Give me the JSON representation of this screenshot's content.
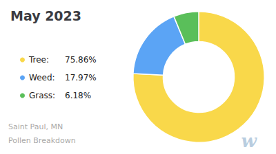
{
  "chart_data": {
    "type": "donut",
    "title": "May 2023",
    "categories": [
      "Tree:",
      "Weed:",
      "Grass:"
    ],
    "values": [
      75.86,
      17.97,
      6.18
    ],
    "value_labels": [
      "75.86%",
      "17.97%",
      "6.18%"
    ],
    "colors": [
      "#f9d84a",
      "#5ba4f5",
      "#5abf5a"
    ],
    "legend": "left",
    "annotations": [
      {
        "text": "Saint Paul, MN",
        "color": "#aaaaaa"
      },
      {
        "text": "Pollen Breakdown",
        "color": "#aaaaaa"
      },
      {
        "text": "w",
        "color": "#b8cde0"
      }
    ]
  }
}
